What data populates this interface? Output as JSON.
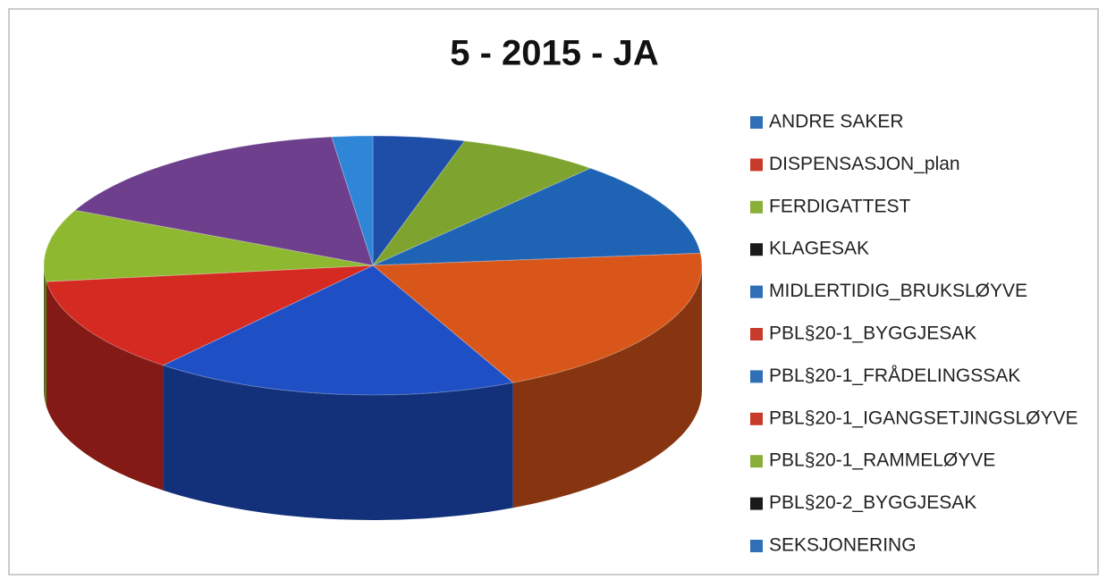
{
  "chart_data": {
    "type": "pie",
    "title": "5 - 2015 - JA",
    "categories": [
      "ANDRE SAKER",
      "DISPENSASJON_plan",
      "FERDIGATTEST",
      "KLAGESAK",
      "MIDLERTIDIG_BRUKSLØYVE",
      "PBL§20-1_BYGGJESAK",
      "PBL§20-1_FRÅDELINGSSAK",
      "PBL§20-1_IGANGSETJINGSLØYVE",
      "PBL§20-1_RAMMELØYVE",
      "PBL§20-2_BYGGJESAK",
      "SEKSJONERING"
    ],
    "values": [
      4.5,
      0,
      7,
      0,
      12,
      19.5,
      18,
      12,
      9,
      16,
      2
    ],
    "colors": [
      "#1f4ea8",
      "#c0392b",
      "#7ea32e",
      "#1a1a1a",
      "#1f63b5",
      "#d9561a",
      "#1f4fc4",
      "#d42a22",
      "#8db82f",
      "#6d3f8c",
      "#2f86d6"
    ],
    "legend_colors": [
      "#2f6fb5",
      "#c83a2b",
      "#8aae3a",
      "#1a1a1a",
      "#2f6fb5",
      "#c83a2b",
      "#2f6fb5",
      "#c83a2b",
      "#8aae3a",
      "#1a1a1a",
      "#2f6fb5"
    ],
    "legend": "right"
  }
}
